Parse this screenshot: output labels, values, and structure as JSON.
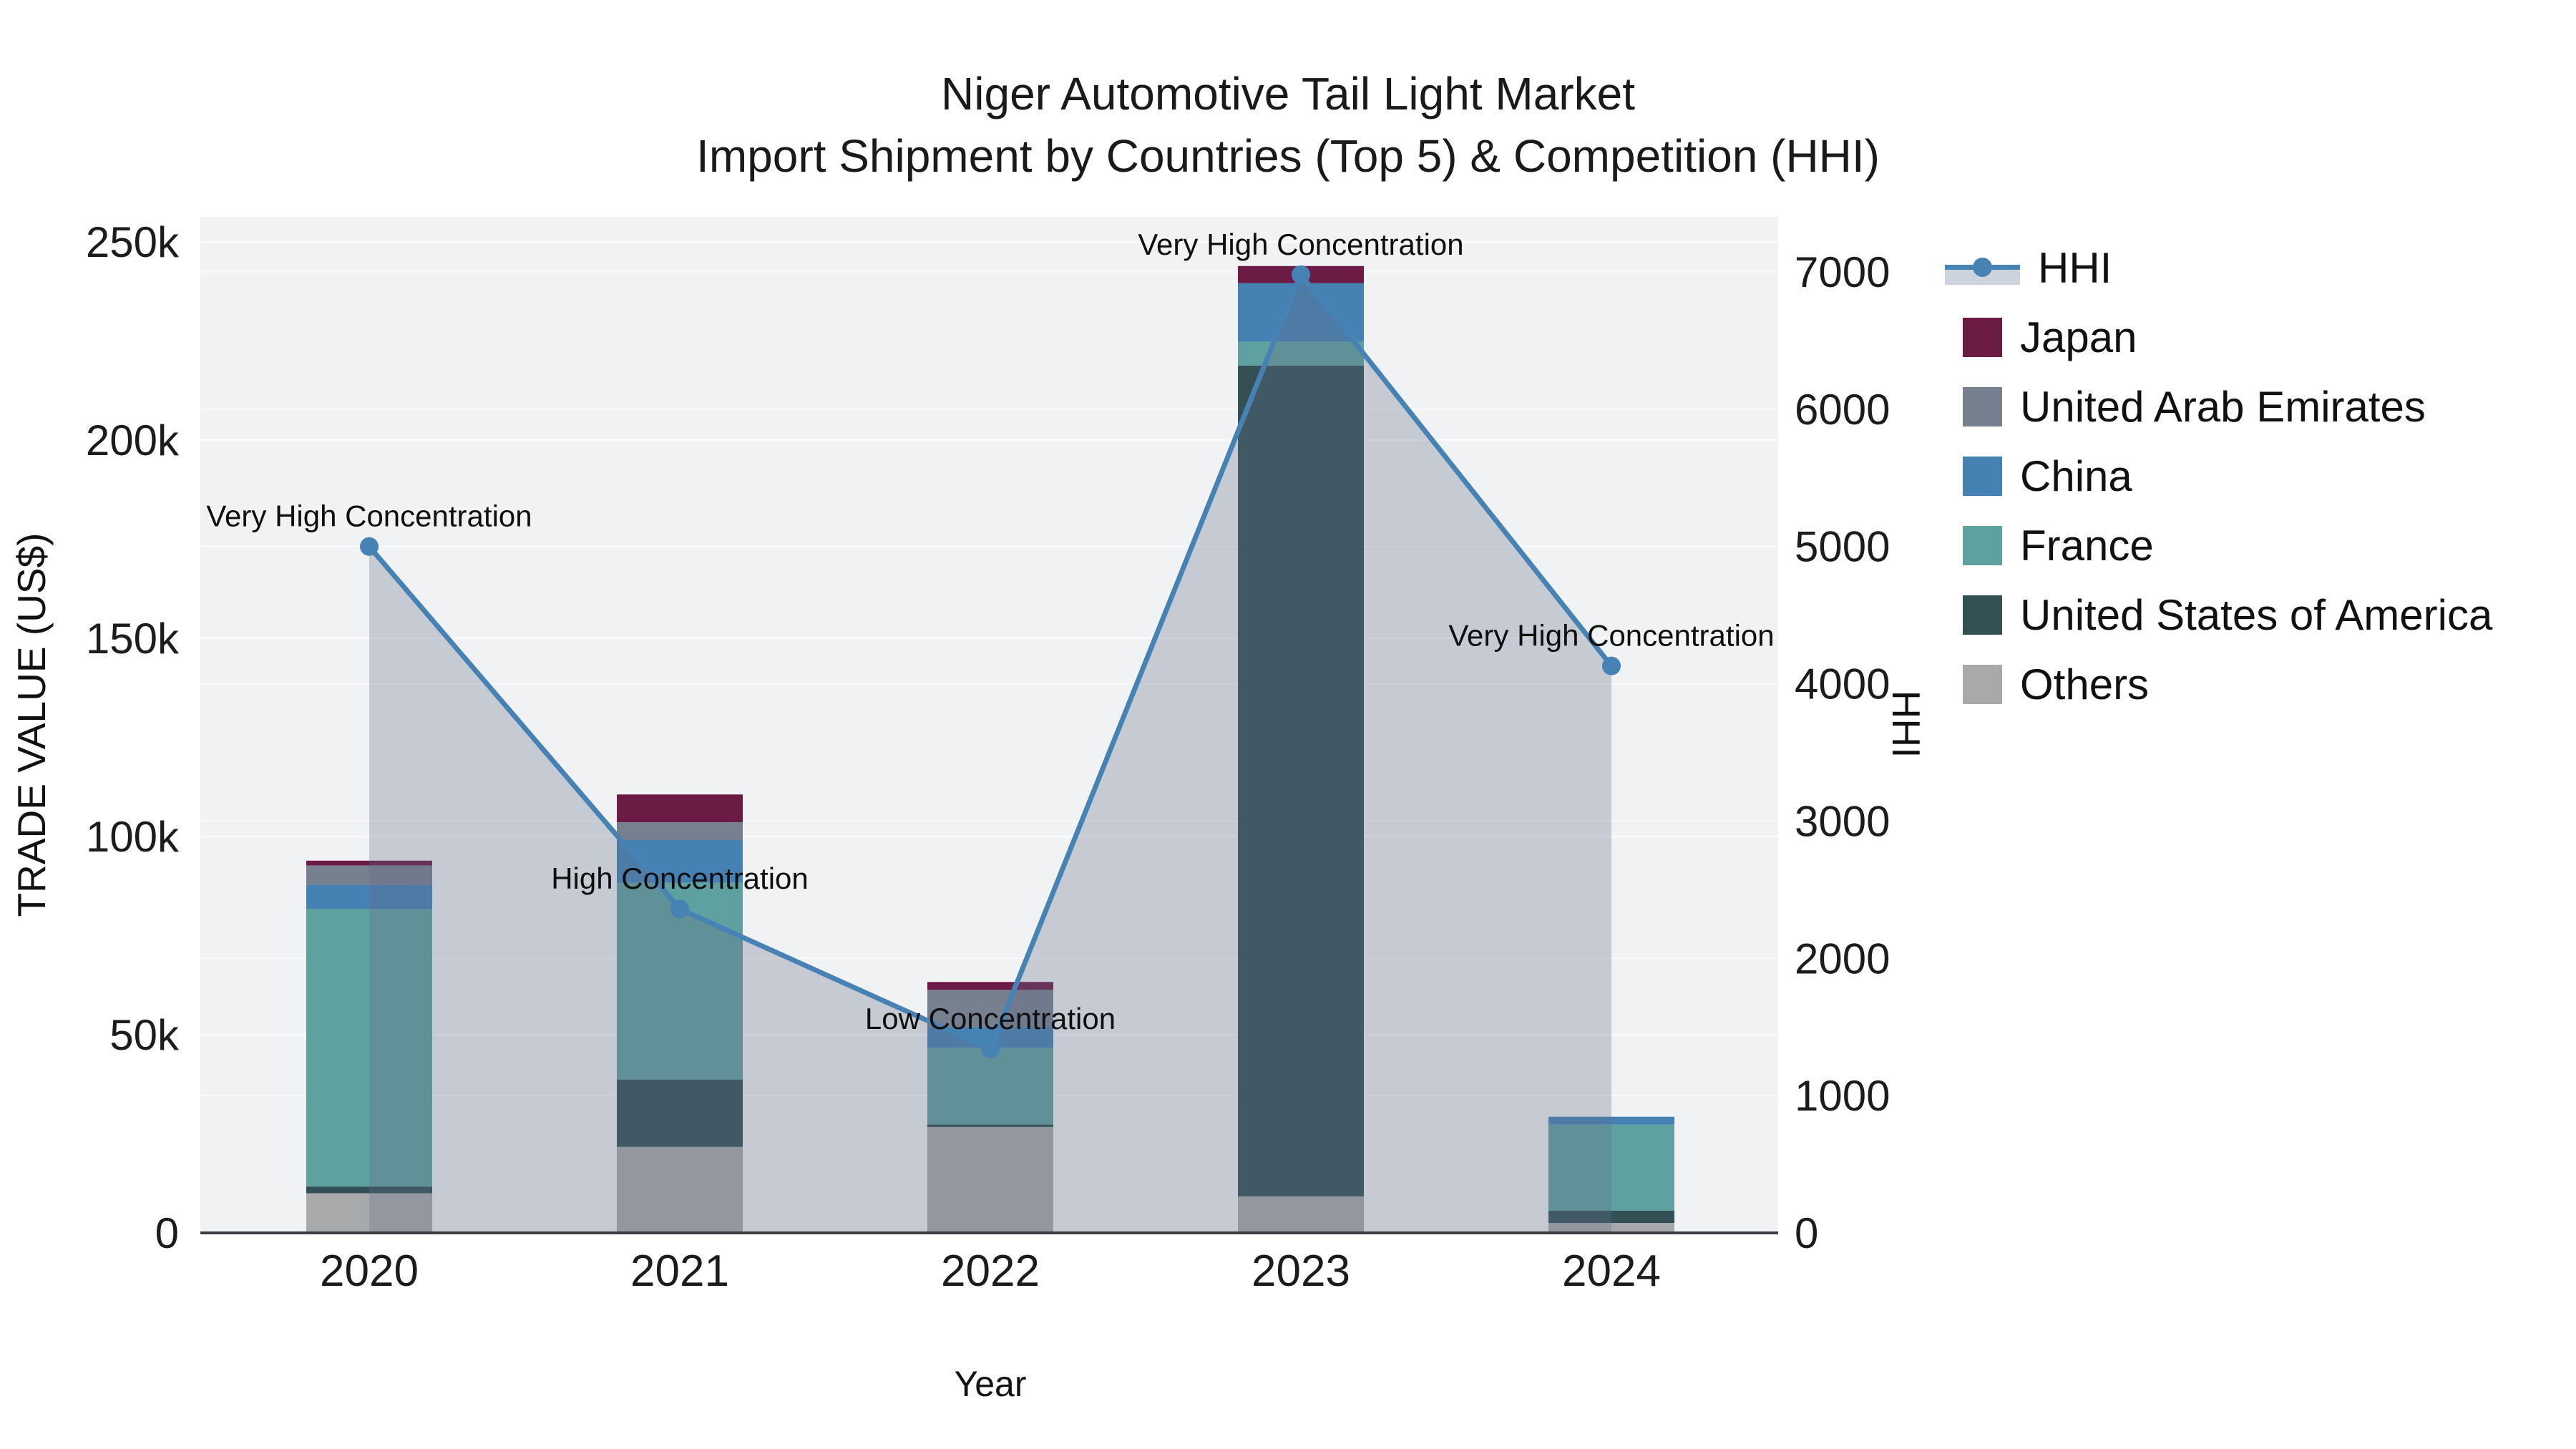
{
  "title": {
    "line1": "Niger Automotive Tail Light Market",
    "line2": "Import Shipment by Countries (Top 5) & Competition (HHI)"
  },
  "axes": {
    "x_title": "Year",
    "y_left_title": "TRADE VALUE (US$)",
    "y_right_title": "HHI",
    "x_ticks": [
      "2020",
      "2021",
      "2022",
      "2023",
      "2024"
    ],
    "y_left_ticks": [
      {
        "label": "0",
        "value": 0
      },
      {
        "label": "50k",
        "value": 50000
      },
      {
        "label": "100k",
        "value": 100000
      },
      {
        "label": "150k",
        "value": 150000
      },
      {
        "label": "200k",
        "value": 200000
      },
      {
        "label": "250k",
        "value": 250000
      }
    ],
    "y_right_ticks": [
      {
        "label": "0",
        "value": 0
      },
      {
        "label": "1000",
        "value": 1000
      },
      {
        "label": "2000",
        "value": 2000
      },
      {
        "label": "3000",
        "value": 3000
      },
      {
        "label": "4000",
        "value": 4000
      },
      {
        "label": "5000",
        "value": 5000
      },
      {
        "label": "6000",
        "value": 6000
      },
      {
        "label": "7000",
        "value": 7000
      }
    ]
  },
  "legend": {
    "items": [
      {
        "label": "HHI",
        "kind": "line"
      },
      {
        "label": "Japan",
        "kind": "swatch",
        "color": "#6b1b44"
      },
      {
        "label": "United Arab Emirates",
        "kind": "swatch",
        "color": "#76808f"
      },
      {
        "label": "China",
        "kind": "swatch",
        "color": "#4681b4"
      },
      {
        "label": "France",
        "kind": "swatch",
        "color": "#5fa0a0"
      },
      {
        "label": "United States of America",
        "kind": "swatch",
        "color": "#335155"
      },
      {
        "label": "Others",
        "kind": "swatch",
        "color": "#a7a9ab"
      }
    ]
  },
  "chart_data": {
    "type": "bar+line",
    "categories": [
      "2020",
      "2021",
      "2022",
      "2023",
      "2024"
    ],
    "bar_unit": "US$ trade value",
    "stack_note": "stacked bottom-to-top: Others, United States of America, France, China, United Arab Emirates, Japan",
    "series": [
      {
        "name": "Japan",
        "color": "#6b1b44",
        "values": [
          1200,
          7000,
          2000,
          4300,
          0
        ]
      },
      {
        "name": "United Arab Emirates",
        "color": "#76808f",
        "values": [
          4900,
          4500,
          9400,
          0,
          0
        ]
      },
      {
        "name": "China",
        "color": "#4681b4",
        "values": [
          6100,
          10800,
          5200,
          14800,
          2000
        ]
      },
      {
        "name": "France",
        "color": "#5fa0a0",
        "values": [
          70000,
          49600,
          19300,
          6000,
          21700
        ]
      },
      {
        "name": "United States of America",
        "color": "#335155",
        "values": [
          1700,
          17000,
          700,
          209600,
          3100
        ]
      },
      {
        "name": "Others",
        "color": "#a7a9ab",
        "values": [
          10000,
          21700,
          26700,
          9200,
          2500
        ]
      }
    ],
    "line_series": {
      "name": "HHI",
      "color": "#4682b4",
      "area_fill": "rgba(100,110,135,0.30)",
      "values": [
        5000,
        2360,
        1340,
        6980,
        4130
      ]
    },
    "ylim_left": [
      0,
      250000
    ],
    "ylim_right": [
      0,
      7000
    ],
    "grid": true,
    "legend_position": "right",
    "annotations": [
      {
        "x": "2020",
        "hhi": 5000,
        "text": "Very High Concentration"
      },
      {
        "x": "2021",
        "hhi": 2360,
        "text": "High Concentration"
      },
      {
        "x": "2022",
        "hhi": 1340,
        "text": "Low Concentration"
      },
      {
        "x": "2023",
        "hhi": 6980,
        "text": "Very High Concentration"
      },
      {
        "x": "2024",
        "hhi": 4130,
        "text": "Very High Concentration"
      }
    ]
  }
}
